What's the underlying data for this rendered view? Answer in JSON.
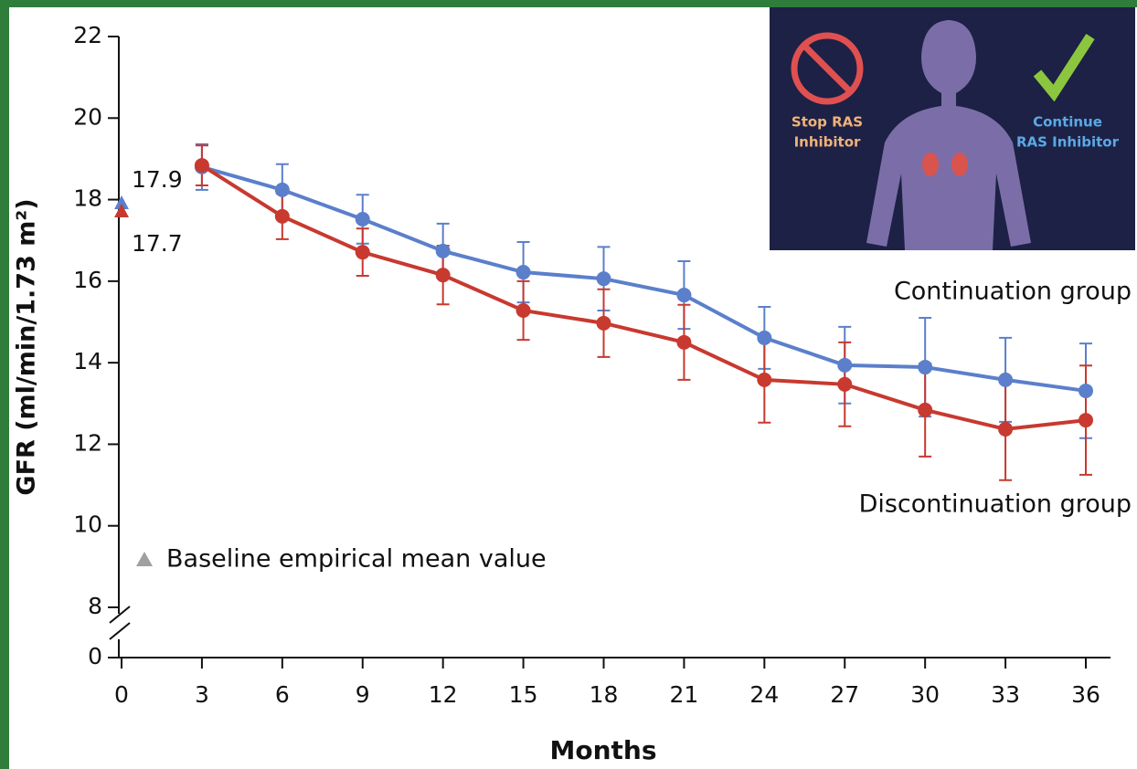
{
  "chart_data": {
    "type": "line",
    "x_label": "Months",
    "y_label": "GFR (ml/min/1.73 m²)",
    "x": [
      3,
      6,
      9,
      12,
      15,
      18,
      21,
      24,
      27,
      30,
      33,
      36
    ],
    "xlim": [
      0,
      37
    ],
    "xticks": [
      0,
      3,
      6,
      9,
      12,
      15,
      18,
      21,
      24,
      27,
      30,
      33,
      36
    ],
    "ylim": [
      0,
      22
    ],
    "yticks": [
      0,
      8,
      10,
      12,
      14,
      16,
      18,
      20,
      22
    ],
    "y_axis_break": [
      0,
      8
    ],
    "series": [
      {
        "name": "Continuation group",
        "color": "#5b7fcb",
        "baseline": 17.9,
        "values": [
          18.8,
          18.24,
          17.52,
          16.74,
          16.22,
          16.06,
          15.66,
          14.61,
          13.94,
          13.89,
          13.58,
          13.31
        ],
        "errors": [
          0.56,
          0.63,
          0.6,
          0.67,
          0.74,
          0.78,
          0.83,
          0.76,
          0.94,
          1.21,
          1.03,
          1.16
        ]
      },
      {
        "name": "Discontinuation group",
        "color": "#c8392f",
        "baseline": 17.7,
        "values": [
          18.84,
          17.59,
          16.71,
          16.15,
          15.28,
          14.97,
          14.5,
          13.58,
          13.47,
          12.84,
          12.37,
          12.59
        ],
        "errors": [
          0.49,
          0.56,
          0.58,
          0.72,
          0.72,
          0.83,
          0.92,
          1.05,
          1.03,
          1.14,
          1.25,
          1.34
        ]
      }
    ],
    "baseline_legend": {
      "label": "Baseline empirical mean value",
      "color": "#a0a0a0"
    },
    "inset": {
      "stop_label": [
        "Stop RAS",
        "Inhibitor"
      ],
      "continue_label": [
        "Continue",
        "RAS Inhibitor"
      ]
    }
  }
}
